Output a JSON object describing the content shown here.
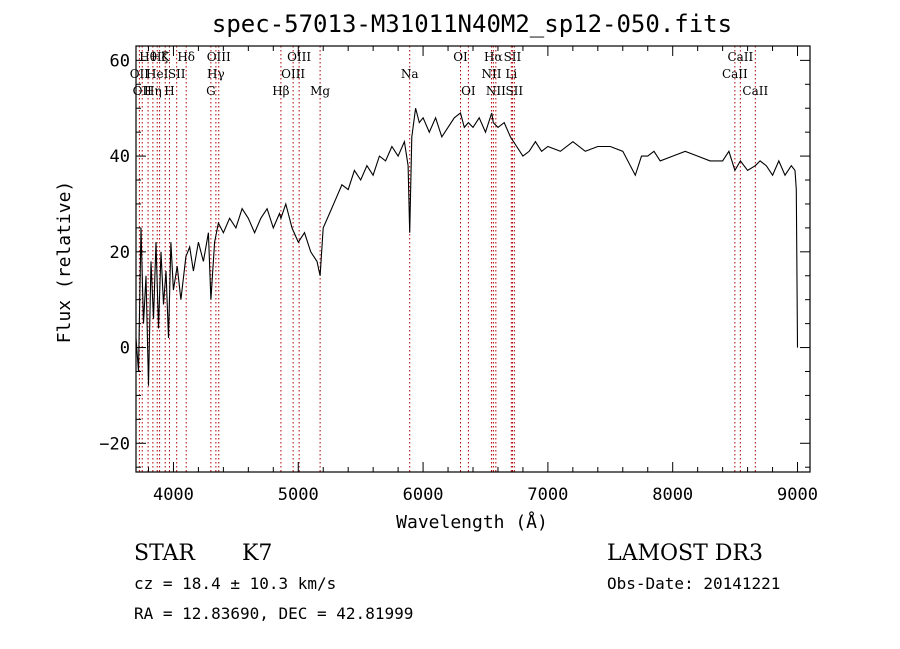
{
  "chart_data": {
    "type": "line",
    "title": "spec-57013-M31011N40M2_sp12-050.fits",
    "xlabel": "Wavelength (Å)",
    "ylabel": "Flux (relative)",
    "xlim": [
      3700,
      9100
    ],
    "ylim": [
      -26,
      63
    ],
    "xticks": [
      4000,
      5000,
      6000,
      7000,
      8000,
      9000
    ],
    "yticks": [
      -20,
      0,
      20,
      40,
      60
    ],
    "grid": false,
    "series": [
      {
        "x": [
          3700,
          3720,
          3740,
          3760,
          3780,
          3800,
          3820,
          3840,
          3860,
          3880,
          3900,
          3920,
          3940,
          3960,
          3980,
          4000,
          4030,
          4060,
          4100,
          4130,
          4160,
          4200,
          4240,
          4280,
          4300,
          4330,
          4360,
          4400,
          4450,
          4500,
          4550,
          4600,
          4650,
          4700,
          4750,
          4800,
          4850,
          4861,
          4900,
          4950,
          5000,
          5050,
          5100,
          5150,
          5175,
          5200,
          5250,
          5300,
          5350,
          5400,
          5450,
          5500,
          5550,
          5600,
          5650,
          5700,
          5750,
          5800,
          5850,
          5880,
          5893,
          5910,
          5940,
          5970,
          6000,
          6050,
          6100,
          6150,
          6200,
          6250,
          6300,
          6330,
          6363,
          6400,
          6450,
          6500,
          6550,
          6563,
          6600,
          6650,
          6700,
          6750,
          6800,
          6850,
          6900,
          6950,
          7000,
          7100,
          7200,
          7300,
          7400,
          7500,
          7600,
          7700,
          7750,
          7800,
          7850,
          7900,
          8000,
          8100,
          8200,
          8300,
          8400,
          8450,
          8498,
          8542,
          8600,
          8662,
          8700,
          8750,
          8800,
          8850,
          8900,
          8950,
          8980,
          8990,
          9000
        ],
        "values": [
          2,
          -5,
          25,
          5,
          15,
          -8,
          18,
          6,
          22,
          4,
          20,
          9,
          16,
          2,
          22,
          12,
          17,
          10,
          19,
          21,
          16,
          22,
          18,
          24,
          10,
          22,
          26,
          24,
          27,
          25,
          29,
          27,
          24,
          27,
          29,
          25,
          28,
          27,
          30,
          25,
          22,
          24,
          20,
          18,
          15,
          25,
          28,
          31,
          34,
          33,
          37,
          35,
          38,
          36,
          40,
          39,
          42,
          40,
          43,
          38,
          24,
          44,
          50,
          47,
          48,
          45,
          48,
          44,
          46,
          48,
          49,
          46,
          47,
          46,
          48,
          45,
          49,
          47,
          46,
          47,
          44,
          42,
          40,
          41,
          43,
          41,
          42,
          41,
          43,
          41,
          42,
          42,
          41,
          36,
          40,
          40,
          41,
          39,
          40,
          41,
          40,
          39,
          39,
          41,
          37,
          39,
          37,
          38,
          39,
          38,
          36,
          39,
          36,
          38,
          37,
          33,
          0
        ]
      }
    ],
    "lines": [
      {
        "wave": 3727,
        "label": "OII",
        "row": 1
      },
      {
        "wave": 3750,
        "label": "OII",
        "row": 2
      },
      {
        "wave": 3797,
        "label": "Hθ",
        "row": 0
      },
      {
        "wave": 3835,
        "label": "Hη",
        "row": 2
      },
      {
        "wave": 3870,
        "label": "HeI",
        "row": 1
      },
      {
        "wave": 3889,
        "label": "Hζ",
        "row": 0
      },
      {
        "wave": 3934,
        "label": "K",
        "row": 0
      },
      {
        "wave": 3968,
        "label": "H",
        "row": 2
      },
      {
        "wave": 4026,
        "label": "SII",
        "row": 1
      },
      {
        "wave": 4102,
        "label": "Hδ",
        "row": 0
      },
      {
        "wave": 4300,
        "label": "G",
        "row": 2
      },
      {
        "wave": 4340,
        "label": "Hγ",
        "row": 1
      },
      {
        "wave": 4363,
        "label": "OIII",
        "row": 0
      },
      {
        "wave": 4861,
        "label": "Hβ",
        "row": 2
      },
      {
        "wave": 4959,
        "label": "OIII",
        "row": 1
      },
      {
        "wave": 5007,
        "label": "OIII",
        "row": 0
      },
      {
        "wave": 5175,
        "label": "Mg",
        "row": 2
      },
      {
        "wave": 5893,
        "label": "Na",
        "row": 1
      },
      {
        "wave": 6300,
        "label": "OI",
        "row": 0
      },
      {
        "wave": 6363,
        "label": "OI",
        "row": 2
      },
      {
        "wave": 6548,
        "label": "NII",
        "row": 1
      },
      {
        "wave": 6563,
        "label": "Hα",
        "row": 0
      },
      {
        "wave": 6583,
        "label": "NII",
        "row": 2
      },
      {
        "wave": 6707,
        "label": "Li",
        "row": 1
      },
      {
        "wave": 6716,
        "label": "SII",
        "row": 0
      },
      {
        "wave": 6731,
        "label": "SII",
        "row": 2
      },
      {
        "wave": 8498,
        "label": "CaII",
        "row": 1
      },
      {
        "wave": 8542,
        "label": "CaII",
        "row": 0
      },
      {
        "wave": 8662,
        "label": "CaII",
        "row": 2
      }
    ]
  },
  "info": {
    "class": "STAR",
    "subclass": "K7",
    "survey": "LAMOST DR3",
    "cz": "cz = 18.4 ± 10.3 km/s",
    "obsdate": "Obs-Date: 20141221",
    "radec": "RA =  12.83690, DEC =  42.81999"
  },
  "colors": {
    "spectrum": "#000000",
    "line_markers": "#b00000",
    "axes": "#000000"
  }
}
